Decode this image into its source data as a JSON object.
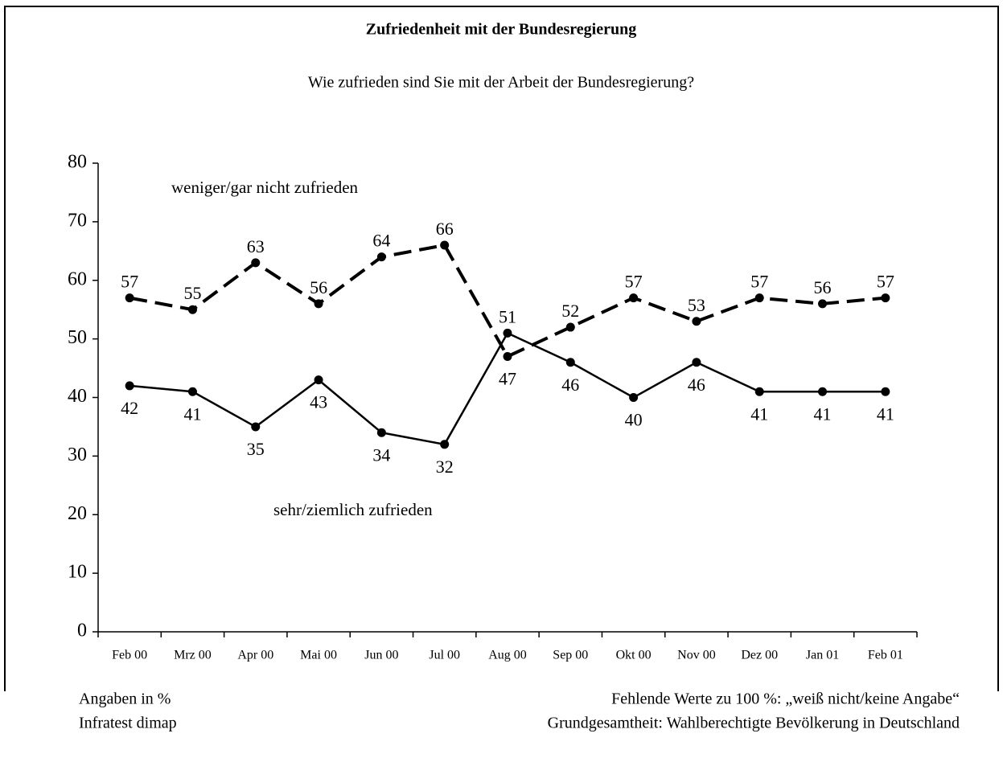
{
  "chart_data": {
    "type": "line",
    "title": "Zufriedenheit mit der Bundesregierung",
    "subtitle": "Wie zufrieden sind Sie mit der Arbeit der Bundesregierung?",
    "categories": [
      "Feb 00",
      "Mrz 00",
      "Apr 00",
      "Mai 00",
      "Jun 00",
      "Jul 00",
      "Aug 00",
      "Sep 00",
      "Okt 00",
      "Nov 00",
      "Dez 00",
      "Jan 01",
      "Feb 01"
    ],
    "series": [
      {
        "name": "weniger/gar nicht zufrieden",
        "color": "#000000",
        "dashed": true,
        "values": [
          57,
          55,
          63,
          56,
          64,
          66,
          47,
          52,
          57,
          53,
          57,
          56,
          57
        ]
      },
      {
        "name": "sehr/ziemlich zufrieden",
        "color": "#000000",
        "dashed": false,
        "values": [
          42,
          41,
          35,
          43,
          34,
          32,
          51,
          46,
          40,
          46,
          41,
          41,
          41
        ]
      }
    ],
    "ylim": [
      0,
      80
    ],
    "yticks": [
      0,
      10,
      20,
      30,
      40,
      50,
      60,
      70,
      80
    ],
    "grid": false,
    "notes_left": [
      "Angaben in %",
      "Infratest dimap"
    ],
    "notes_right": [
      "Fehlende Werte zu 100 %: „weiß nicht/keine Angabe“",
      "Grundgesamtheit: Wahlberechtigte Bevölkerung in Deutschland"
    ]
  }
}
